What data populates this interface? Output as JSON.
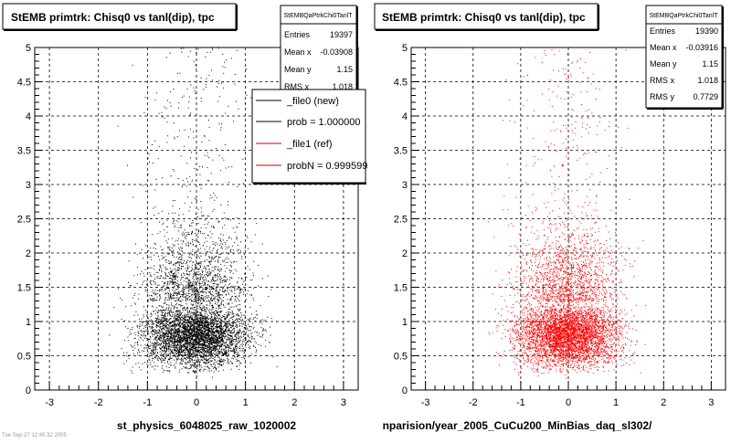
{
  "panels": [
    {
      "title": "StEMB primtrk: Chisq0 vs tanl(dip), tpc",
      "xlabel": "st_physics_6048025_raw_1020002",
      "stats": {
        "name": "StEMBQaPtrkChi0TanlT",
        "rows": [
          {
            "label": "Entries",
            "value": "19397"
          },
          {
            "label": "Mean x",
            "value": "-0.03908"
          },
          {
            "label": "Mean y",
            "value": "1.15"
          },
          {
            "label": "RMS x",
            "value": "1.018"
          }
        ]
      },
      "legend": [
        {
          "label": "_file0 (new)",
          "color": "#000000"
        },
        {
          "label": "prob = 1.000000",
          "color": "#000000"
        },
        {
          "label": "_file1 (ref)",
          "color": "#cc0000"
        },
        {
          "label": "probN = 0.999599",
          "color": "#cc0000"
        }
      ]
    },
    {
      "title": "StEMB primtrk: Chisq0 vs tanl(dip), tpc",
      "xlabel": "nparision/year_2005_CuCu200_MinBias_daq_sl302/",
      "stats": {
        "name": "StEMBQaPtrkChi0TanlT",
        "rows": [
          {
            "label": "Entries",
            "value": "19390"
          },
          {
            "label": "Mean x",
            "value": "-0.03916"
          },
          {
            "label": "Mean y",
            "value": "1.15"
          },
          {
            "label": "RMS x",
            "value": "1.018"
          },
          {
            "label": "RMS y",
            "value": "0.7729"
          }
        ]
      }
    }
  ],
  "footer_text": "Tue Sep 27 12:45:32 2005",
  "chart_data": [
    {
      "type": "scatter",
      "title": "StEMB primtrk: Chisq0 vs tanl(dip), tpc",
      "xlabel": "st_physics_6048025_raw_1020002",
      "ylabel": "",
      "xlim": [
        -3.3,
        3.3
      ],
      "ylim": [
        0,
        5
      ],
      "xticks": [
        "-3",
        "-2",
        "-1",
        "0",
        "1",
        "2",
        "3"
      ],
      "yticks": [
        "0",
        "0.5",
        "1",
        "1.5",
        "2",
        "2.5",
        "3",
        "3.5",
        "4",
        "4.5",
        "5"
      ],
      "grid": true,
      "color": "#000000",
      "entries": 19397,
      "mean_x": -0.03908,
      "mean_y": 1.15,
      "rms_x": 1.018,
      "seed": 11
    },
    {
      "type": "scatter",
      "title": "StEMB primtrk: Chisq0 vs tanl(dip), tpc",
      "xlabel": "nparision/year_2005_CuCu200_MinBias_daq_sl302/",
      "ylabel": "",
      "xlim": [
        -3.3,
        3.3
      ],
      "ylim": [
        0,
        5
      ],
      "xticks": [
        "-3",
        "-2",
        "-1",
        "0",
        "1",
        "2",
        "3"
      ],
      "yticks": [
        "0",
        "0.5",
        "1",
        "1.5",
        "2",
        "2.5",
        "3",
        "3.5",
        "4",
        "4.5",
        "5"
      ],
      "grid": true,
      "color": "#ff0000",
      "entries": 19390,
      "mean_x": -0.03916,
      "mean_y": 1.15,
      "rms_x": 1.018,
      "rms_y": 0.7729,
      "seed": 29
    }
  ]
}
